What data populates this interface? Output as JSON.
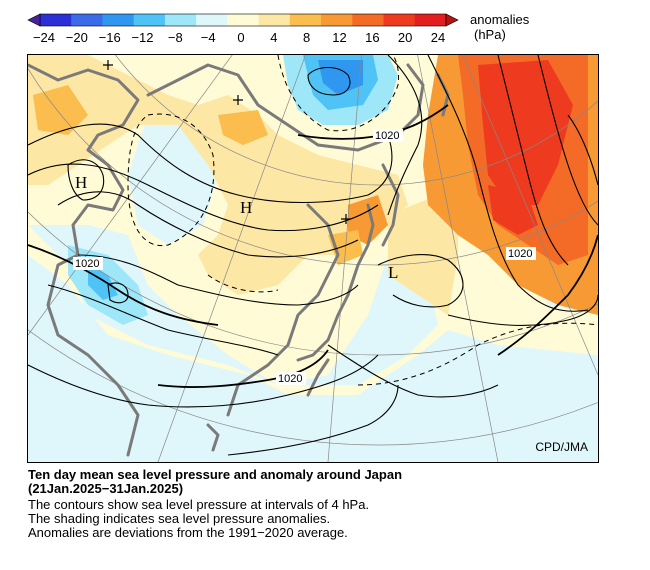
{
  "colorbar": {
    "unit_line1": "anomalies",
    "unit_line2": "(hPa)",
    "ticks": [
      "−24",
      "−20",
      "−16",
      "−12",
      "−8",
      "−4",
      "0",
      "4",
      "8",
      "12",
      "16",
      "20",
      "24"
    ],
    "colors": [
      "#2b2fd6",
      "#3c6bea",
      "#2f97f0",
      "#4fc3f6",
      "#9ee7f8",
      "#dff7fb",
      "#fffbd6",
      "#fde7a5",
      "#fbbd4d",
      "#f79a34",
      "#f36b26",
      "#ee3b1f",
      "#e21e1e"
    ]
  },
  "map": {
    "credit": "CPD/JMA",
    "pressure_labels": [
      "1020",
      "1020",
      "1020",
      "1020"
    ],
    "centers": [
      "H",
      "H",
      "L"
    ]
  },
  "caption": {
    "line1": "Ten day mean sea level pressure and anomaly around Japan",
    "line2": "(21Jan.2025−31Jan.2025)",
    "line3": "The contours show sea level pressure at intervals of 4 hPa.",
    "line4": "The shading indicates sea level pressure anomalies.",
    "line5": "Anomalies are deviations from the 1991−2020 average."
  }
}
